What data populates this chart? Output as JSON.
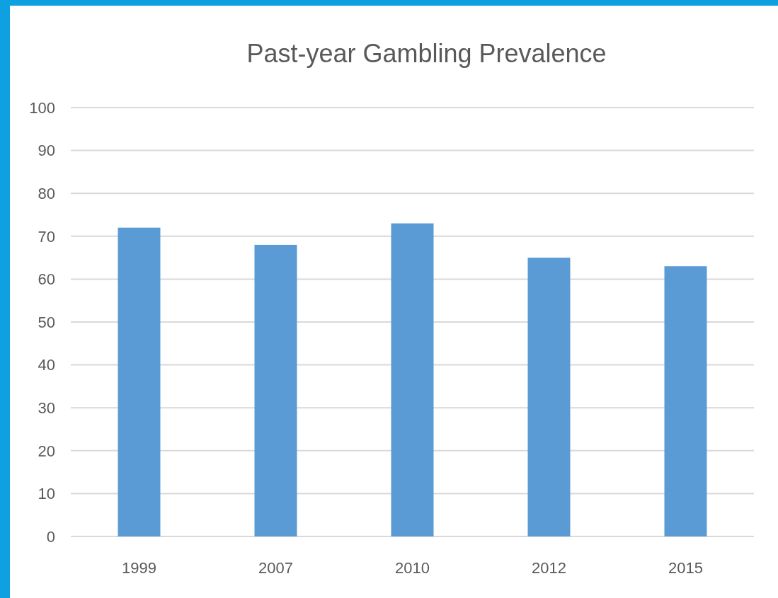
{
  "chart_data": {
    "type": "bar",
    "title": "Past-year Gambling Prevalence",
    "categories": [
      "1999",
      "2007",
      "2010",
      "2012",
      "2015"
    ],
    "values": [
      72,
      68,
      73,
      65,
      63
    ],
    "color": "#5b9bd5",
    "ylim": [
      0,
      100
    ],
    "yticks": [
      0,
      10,
      20,
      30,
      40,
      50,
      60,
      70,
      80,
      90,
      100
    ],
    "grid": "y"
  }
}
